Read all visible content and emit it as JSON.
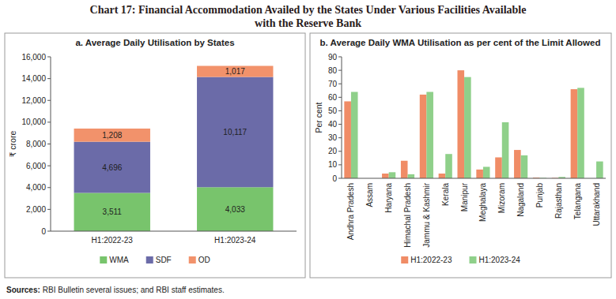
{
  "header": {
    "title": [
      "Chart 17: Financial Accommodation Availed by the States Under Various Facilities Available",
      "with the Reserve Bank"
    ]
  },
  "footer": {
    "source_label": "Sources:",
    "source": "RBI Bulletin several issues; and RBI staff estimates."
  },
  "chart_data": [
    {
      "type": "bar",
      "title": "a. Average Daily Utilisation by States",
      "y_label": "₹ crore",
      "stacked": true,
      "data_labels": true,
      "grid": false,
      "legend": "bottom",
      "categories": [
        "H1:2022-23",
        "H1:2023-24"
      ],
      "series": [
        {
          "name": "WMA",
          "color": "#78c46c",
          "values": [
            3511,
            4033
          ],
          "value_labels": [
            "3,511",
            "4,033"
          ]
        },
        {
          "name": "SDF",
          "color": "#6b6ba8",
          "values": [
            4696,
            10117
          ],
          "value_labels": [
            "4,696",
            "10,117"
          ]
        },
        {
          "name": "OD",
          "color": "#f2926b",
          "values": [
            1208,
            1017
          ],
          "value_labels": [
            "1,208",
            "1,017"
          ]
        }
      ],
      "ylim": [
        0,
        16000
      ],
      "yticks": [
        0,
        {
          "value": 2000,
          "label": "2,000"
        },
        {
          "value": 4000,
          "label": "4,000"
        },
        {
          "value": 6000,
          "label": "6,000"
        },
        {
          "value": 8000,
          "label": "8,000"
        },
        {
          "value": 10000,
          "label": "10,000"
        },
        {
          "value": 12000,
          "label": "12,000"
        },
        {
          "value": 14000,
          "label": "14,000"
        },
        {
          "value": 16000,
          "label": "16,000"
        }
      ]
    },
    {
      "type": "bar",
      "title": "b. Average Daily WMA Utilisation as per cent of the Limit Allowed",
      "y_label": "Per cent",
      "grid": false,
      "legend": "bottom",
      "categories": [
        "Andhra Pradesh",
        "Assam",
        "Haryana",
        "Himachal Pradesh",
        "Jammu & Kashmir",
        "Kerala",
        "Manipur",
        "Meghalaya",
        "Mizoram",
        "Nagaland",
        "Punjab",
        "Rajasthan",
        "Telangana",
        "Uttarakhand"
      ],
      "series": [
        {
          "name": "H1:2022-23",
          "color": "#f08c66",
          "values": [
            57,
            0,
            3.5,
            13,
            62,
            3.5,
            80,
            6.5,
            15.5,
            21,
            0.5,
            0.3,
            66,
            0
          ]
        },
        {
          "name": "H1:2023-24",
          "color": "#8fd08a",
          "values": [
            64,
            0,
            4.5,
            3,
            64,
            18,
            75,
            8.5,
            41.5,
            17,
            0.3,
            1,
            67,
            12.5
          ]
        }
      ],
      "ylim": [
        0,
        90
      ],
      "yticks": [
        0,
        10,
        20,
        30,
        40,
        50,
        60,
        70,
        80,
        90
      ]
    }
  ]
}
